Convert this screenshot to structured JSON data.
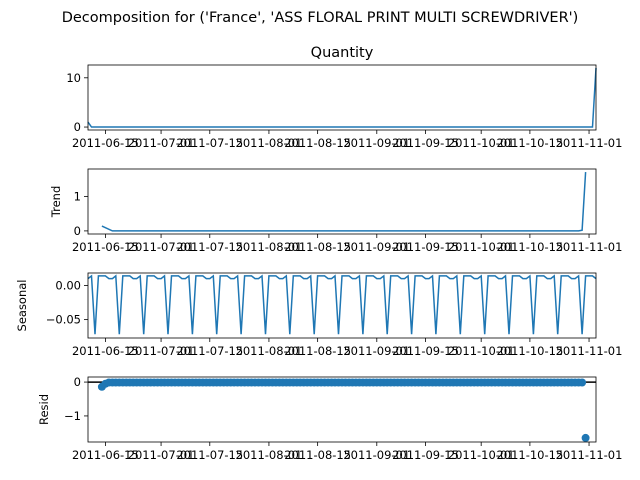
{
  "chart_data": {
    "suptitle": "Decomposition for ('France', 'ASS FLORAL PRINT MULTI SCREWDRIVER')",
    "type": "line",
    "color": "#1f77b4",
    "x_tick_labels": [
      "2011-06-15",
      "2011-07-01",
      "2011-07-15",
      "2011-08-01",
      "2011-08-15",
      "2011-09-01",
      "2011-09-15",
      "2011-10-01",
      "2011-10-15",
      "2011-11-01"
    ],
    "x_tick_dates": [
      "2011-06-15",
      "2011-07-01",
      "2011-07-15",
      "2011-08-01",
      "2011-08-15",
      "2011-09-01",
      "2011-09-15",
      "2011-10-01",
      "2011-10-15",
      "2011-11-01"
    ],
    "x_range": [
      "2011-06-10",
      "2011-11-03"
    ],
    "panels": [
      {
        "name": "observed",
        "title": "Quantity",
        "ylabel": "",
        "type": "line",
        "ylim": [
          -0.6,
          12.6
        ],
        "yticks": [
          0,
          10
        ],
        "ytick_labels": [
          "0",
          "10"
        ],
        "series": {
          "x": [
            "2011-06-10",
            "2011-06-11",
            "2011-10-31",
            "2011-11-01",
            "2011-11-02",
            "2011-11-03"
          ],
          "y": [
            1,
            0,
            0,
            0,
            0,
            12
          ]
        }
      },
      {
        "name": "trend",
        "title": "",
        "ylabel": "Trend",
        "type": "line",
        "ylim": [
          -0.09,
          1.8
        ],
        "yticks": [
          0,
          1
        ],
        "ytick_labels": [
          "0",
          "1"
        ],
        "series": {
          "x": [
            "2011-06-14",
            "2011-06-17",
            "2011-10-29",
            "2011-10-30",
            "2011-10-31"
          ],
          "y": [
            0.14,
            0,
            0,
            0.02,
            1.71
          ]
        }
      },
      {
        "name": "seasonal",
        "title": "",
        "ylabel": "Seasonal",
        "type": "line",
        "ylim": [
          -0.077,
          0.0185
        ],
        "yticks": [
          0,
          -0.05
        ],
        "ytick_labels": [
          "0.00",
          "−0.05"
        ],
        "period_days": 7,
        "anchor": "2011-06-13",
        "weekly_pattern": [
          0.0143,
          0.0143,
          0.0143,
          0.0102,
          0.0102,
          0.0143,
          -0.0714
        ],
        "series": {
          "x_start": "2011-06-10",
          "x_end": "2011-11-03"
        }
      },
      {
        "name": "resid",
        "title": "",
        "ylabel": "Resid",
        "type": "scatter",
        "ylim": [
          -1.77,
          0.15
        ],
        "yticks": [
          0,
          -1
        ],
        "ytick_labels": [
          "0",
          "−1"
        ],
        "baseline": 0,
        "series": {
          "x_start": "2011-06-14",
          "x_end": "2011-10-31",
          "typical_value": -0.012,
          "outliers": [
            {
              "x": "2011-06-14",
              "y": -0.14
            },
            {
              "x": "2011-06-15",
              "y": -0.05
            },
            {
              "x": "2011-10-31",
              "y": -1.65
            }
          ]
        }
      }
    ]
  }
}
